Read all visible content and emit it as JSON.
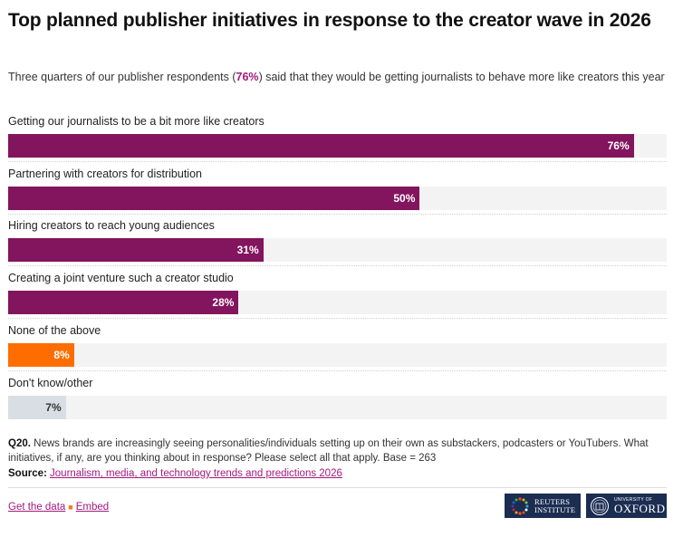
{
  "header": {
    "title": "Top planned publisher initiatives in response to the creator wave in 2026",
    "subtitle_pre": "Three quarters of our publisher respondents (",
    "subtitle_highlight": "76%",
    "subtitle_post": ") said that they would be getting journalists to behave more like creators this year"
  },
  "chart_data": {
    "type": "bar",
    "orientation": "horizontal",
    "title": "Top planned publisher initiatives in response to the creator wave in 2026",
    "xlabel": "",
    "ylabel": "",
    "xlim": [
      0,
      80
    ],
    "grid": false,
    "unit": "%",
    "categories": [
      "Getting our journalists to be a bit more like creators",
      "Partnering with creators for distribution",
      "Hiring creators to reach young audiences",
      "Creating a joint venture such a creator studio",
      "None of the above",
      "Don't know/other"
    ],
    "values": [
      76,
      50,
      31,
      28,
      8,
      7
    ],
    "labels": [
      "76%",
      "50%",
      "31%",
      "28%",
      "8%",
      "7%"
    ],
    "bar_colors": [
      "#83145e",
      "#83145e",
      "#83145e",
      "#83145e",
      "#ff6d00",
      "#d9dee5"
    ],
    "label_colors": [
      "#ffffff",
      "#ffffff",
      "#ffffff",
      "#ffffff",
      "#ffffff",
      "#333333"
    ],
    "track_color": "#f3f3f3"
  },
  "footer": {
    "note_bold": "Q20.",
    "note_text": " News brands are increasingly seeing personalities/individuals setting up on their own as substackers, podcasters or YouTubers. What initiatives, if any, are you thinking about in response? Please select all that apply. Base = 263",
    "source_label": "Source:",
    "source_link": "Journalism, media, and technology trends and predictions 2026",
    "get_data": "Get the data",
    "separator": "■",
    "embed": "Embed",
    "logo_reuters_line1": "REUTERS",
    "logo_reuters_line2": "INSTITUTE",
    "logo_oxford_line1": "UNIVERSITY OF",
    "logo_oxford_line2": "OXFORD"
  },
  "colors": {
    "accent": "#a3187c",
    "logo_bg": "#1c2d52"
  }
}
